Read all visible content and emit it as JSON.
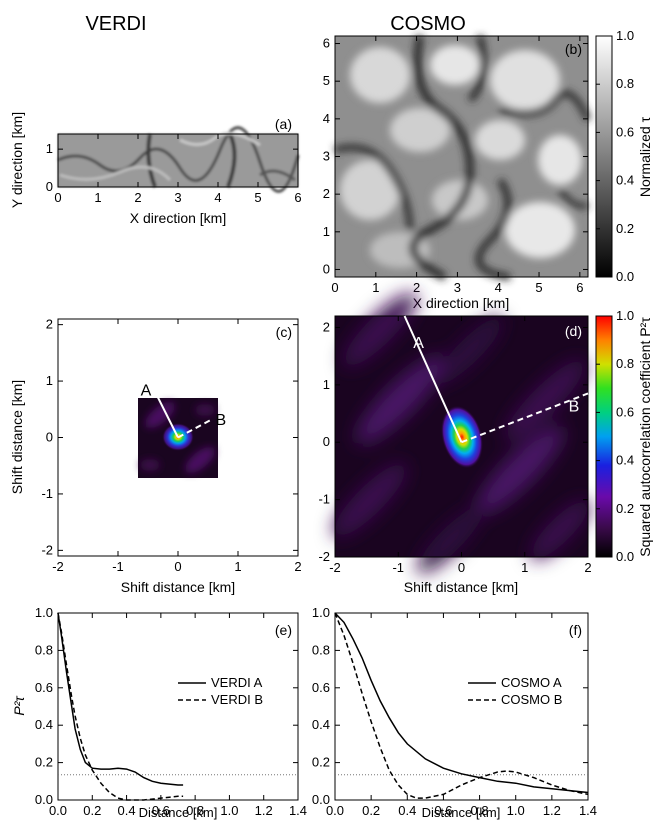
{
  "columns": {
    "left": "VERDI",
    "right": "COSMO"
  },
  "colorbars": [
    {
      "label": "Normalized τ",
      "ticks": [
        "0.0",
        "0.2",
        "0.4",
        "0.6",
        "0.8",
        "1.0"
      ],
      "colormap": "gray"
    },
    {
      "label": "Squared autocorrelation coefficient P²τ",
      "ticks": [
        "0.0",
        "0.2",
        "0.4",
        "0.6",
        "0.8",
        "1.0"
      ],
      "colormap": "rainbow"
    }
  ],
  "chart_data": [
    {
      "id": "a",
      "type": "heatmap",
      "panel_label": "(a)",
      "xlabel": "X direction [km]",
      "ylabel": "Y direction [km]",
      "xlim": [
        0,
        6
      ],
      "ylim": [
        0,
        1.4
      ],
      "xticks": [
        "0",
        "1",
        "2",
        "3",
        "4",
        "5",
        "6"
      ],
      "yticks": [
        "0",
        "1"
      ]
    },
    {
      "id": "b",
      "type": "heatmap",
      "panel_label": "(b)",
      "xlabel": "X direction [km]",
      "ylabel": "",
      "xlim": [
        0,
        6.2
      ],
      "ylim": [
        -0.2,
        6.2
      ],
      "xticks": [
        "0",
        "1",
        "2",
        "3",
        "4",
        "5",
        "6"
      ],
      "yticks": [
        "0",
        "1",
        "2",
        "3",
        "4",
        "5",
        "6"
      ]
    },
    {
      "id": "c",
      "type": "heatmap",
      "panel_label": "(c)",
      "xlabel": "Shift distance [km]",
      "ylabel": "Shift distance [km]",
      "xlim": [
        -2,
        2
      ],
      "ylim": [
        -2.1,
        2.1
      ],
      "xticks": [
        "-2",
        "-1",
        "0",
        "1",
        "2"
      ],
      "yticks": [
        "-2",
        "-1",
        "0",
        "1",
        "2"
      ],
      "annotations": [
        {
          "text": "A",
          "line": [
            [
              0,
              0
            ],
            [
              -0.4,
              0.85
            ]
          ],
          "style": "solid"
        },
        {
          "text": "B",
          "line": [
            [
              0,
              0
            ],
            [
              0.58,
              0.33
            ]
          ],
          "style": "dashed"
        }
      ]
    },
    {
      "id": "d",
      "type": "heatmap",
      "panel_label": "(d)",
      "xlabel": "Shift distance [km]",
      "ylabel": "",
      "xlim": [
        -2,
        2
      ],
      "ylim": [
        -2,
        2.2
      ],
      "xticks": [
        "-2",
        "-1",
        "0",
        "1",
        "2"
      ],
      "yticks": [
        "-2",
        "-1",
        "0",
        "1",
        "2"
      ],
      "annotations": [
        {
          "text": "A",
          "line": [
            [
              0,
              0
            ],
            [
              -0.9,
              2.2
            ]
          ],
          "style": "solid"
        },
        {
          "text": "B",
          "line": [
            [
              0,
              0
            ],
            [
              2,
              0.85
            ]
          ],
          "style": "dashed"
        }
      ]
    },
    {
      "id": "e",
      "type": "line",
      "panel_label": "(e)",
      "xlabel": "Distance [km]",
      "ylabel": "P²τ",
      "xlim": [
        0,
        1.4
      ],
      "ylim": [
        0,
        1.0
      ],
      "xticks": [
        "0.0",
        "0.2",
        "0.4",
        "0.6",
        "0.8",
        "1.0",
        "1.2",
        "1.4"
      ],
      "yticks": [
        "0.0",
        "0.2",
        "0.4",
        "0.6",
        "0.8",
        "1.0"
      ],
      "threshold": 0.135,
      "series": [
        {
          "name": "VERDI A",
          "style": "solid",
          "x": [
            0,
            0.02,
            0.05,
            0.08,
            0.1,
            0.13,
            0.16,
            0.2,
            0.25,
            0.3,
            0.35,
            0.4,
            0.45,
            0.5,
            0.55,
            0.6,
            0.65,
            0.7,
            0.73
          ],
          "y": [
            1.0,
            0.88,
            0.68,
            0.5,
            0.38,
            0.27,
            0.2,
            0.17,
            0.165,
            0.165,
            0.17,
            0.165,
            0.15,
            0.12,
            0.1,
            0.09,
            0.085,
            0.08,
            0.08
          ]
        },
        {
          "name": "VERDI B",
          "style": "dashed",
          "x": [
            0,
            0.02,
            0.05,
            0.08,
            0.1,
            0.13,
            0.16,
            0.2,
            0.25,
            0.3,
            0.35,
            0.4,
            0.45,
            0.5,
            0.55,
            0.6,
            0.65,
            0.7,
            0.73
          ],
          "y": [
            1.0,
            0.9,
            0.72,
            0.55,
            0.45,
            0.33,
            0.24,
            0.16,
            0.09,
            0.04,
            0.01,
            0.0,
            0.0,
            0.0,
            0.005,
            0.01,
            0.015,
            0.02,
            0.02
          ]
        }
      ]
    },
    {
      "id": "f",
      "type": "line",
      "panel_label": "(f)",
      "xlabel": "Distance [km]",
      "ylabel": "",
      "xlim": [
        0,
        1.4
      ],
      "ylim": [
        0,
        1.0
      ],
      "xticks": [
        "0.0",
        "0.2",
        "0.4",
        "0.6",
        "0.8",
        "1.0",
        "1.2",
        "1.4"
      ],
      "yticks": [
        "0.0",
        "0.2",
        "0.4",
        "0.6",
        "0.8",
        "1.0"
      ],
      "threshold": 0.135,
      "series": [
        {
          "name": "COSMO A",
          "style": "solid",
          "x": [
            0,
            0.05,
            0.1,
            0.15,
            0.2,
            0.25,
            0.3,
            0.35,
            0.4,
            0.5,
            0.6,
            0.7,
            0.8,
            0.9,
            1.0,
            1.1,
            1.2,
            1.3,
            1.4
          ],
          "y": [
            1.0,
            0.95,
            0.86,
            0.76,
            0.64,
            0.53,
            0.44,
            0.36,
            0.3,
            0.22,
            0.17,
            0.14,
            0.12,
            0.1,
            0.09,
            0.07,
            0.06,
            0.05,
            0.04
          ]
        },
        {
          "name": "COSMO B",
          "style": "dashed",
          "x": [
            0,
            0.05,
            0.1,
            0.15,
            0.2,
            0.25,
            0.3,
            0.35,
            0.4,
            0.45,
            0.5,
            0.6,
            0.7,
            0.8,
            0.9,
            0.95,
            1.0,
            1.1,
            1.2,
            1.3,
            1.4
          ],
          "y": [
            1.0,
            0.88,
            0.73,
            0.57,
            0.42,
            0.28,
            0.16,
            0.08,
            0.03,
            0.01,
            0.01,
            0.03,
            0.08,
            0.12,
            0.15,
            0.155,
            0.15,
            0.12,
            0.08,
            0.05,
            0.03
          ]
        }
      ]
    }
  ]
}
